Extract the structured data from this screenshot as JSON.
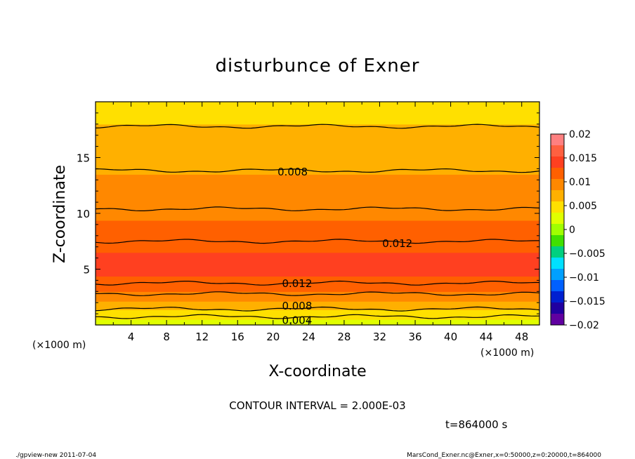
{
  "chart_data": {
    "type": "contour",
    "title": "disturbunce of Exner",
    "xlabel": "X-coordinate",
    "ylabel": "Z-coordinate",
    "x_unit": "(×1000 m)",
    "xlim": [
      0,
      50
    ],
    "ylim": [
      0,
      20
    ],
    "x_ticks": [
      "4",
      "8",
      "12",
      "16",
      "20",
      "24",
      "28",
      "32",
      "36",
      "40",
      "44",
      "48"
    ],
    "y_ticks": [
      "5",
      "10",
      "15"
    ],
    "colorbar": {
      "ticks": [
        "0.02",
        "0.015",
        "0.01",
        "0.005",
        "0",
        "−0.005",
        "−0.01",
        "−0.015",
        "−0.02"
      ],
      "range": [
        -0.02,
        0.02
      ],
      "colors": [
        "#ff8080",
        "#ff6040",
        "#ff4020",
        "#ff6000",
        "#ff8800",
        "#ffb000",
        "#ffe000",
        "#e0ff00",
        "#a0ff00",
        "#40e000",
        "#00d080",
        "#00e0ff",
        "#00a0ff",
        "#0060ff",
        "#0020d0",
        "#2000a0",
        "#6000a0"
      ]
    },
    "profile": {
      "z": [
        0,
        1,
        2,
        3,
        4,
        5,
        6,
        7,
        8,
        9,
        10,
        11,
        12,
        13,
        14,
        15,
        16,
        17,
        18,
        19,
        20
      ],
      "value": [
        0.0025,
        0.0045,
        0.008,
        0.0105,
        0.0125,
        0.0138,
        0.0135,
        0.0125,
        0.0115,
        0.0108,
        0.0102,
        0.0097,
        0.0091,
        0.0085,
        0.0079,
        0.0074,
        0.0069,
        0.0064,
        0.0059,
        0.0054,
        0.0049
      ]
    },
    "contour_labels": [
      {
        "text": "0.008",
        "x": 22.2,
        "z": 13.7
      },
      {
        "text": "0.012",
        "x": 34.0,
        "z": 7.3
      },
      {
        "text": "0.012",
        "x": 22.7,
        "z": 3.7
      },
      {
        "text": "0.008",
        "x": 22.7,
        "z": 1.7
      },
      {
        "text": "0.004",
        "x": 22.7,
        "z": 0.4
      }
    ],
    "contour_interval": "CONTOUR INTERVAL = 2.000E-03",
    "time": "t=864000 s",
    "footer_left": "./gpview-new   2011-07-04",
    "footer_right": "MarsCond_Exner.nc@Exner,x=0:50000,z=0:20000,t=864000"
  }
}
